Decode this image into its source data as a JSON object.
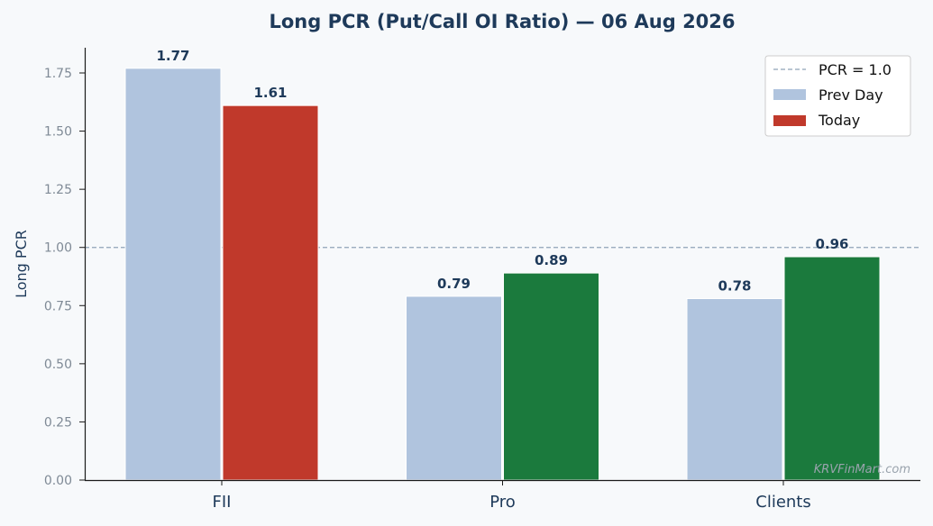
{
  "chart_data": {
    "type": "bar",
    "title": "Long PCR (Put/Call OI Ratio) — 06 Aug 2026",
    "ylabel": "Long PCR",
    "xlabel": "",
    "categories": [
      "FII",
      "Pro",
      "Clients"
    ],
    "series": [
      {
        "name": "Prev Day",
        "values": [
          1.77,
          0.79,
          0.78
        ],
        "colors": [
          "#b0c4de",
          "#b0c4de",
          "#b0c4de"
        ]
      },
      {
        "name": "Today",
        "values": [
          1.61,
          0.89,
          0.96
        ],
        "colors": [
          "#c0392b",
          "#1b7a3d",
          "#1b7a3d"
        ]
      }
    ],
    "value_labels": [
      "1.77",
      "0.79",
      "0.78",
      "1.61",
      "0.89",
      "0.96"
    ],
    "ylim": [
      0,
      1.87
    ],
    "yticks": [
      "0.00",
      "0.25",
      "0.50",
      "0.75",
      "1.00",
      "1.25",
      "1.50",
      "1.75"
    ],
    "reference_line": {
      "value": 1.0,
      "label": "PCR = 1.0",
      "color": "#8fa3b8",
      "style": "dashed"
    },
    "legend": {
      "position": "top-right",
      "colors": {
        "Prev Day": "#b0c4de",
        "Today": "#c0392b"
      }
    },
    "grid": false
  },
  "watermark": "KRVFinMart.com"
}
